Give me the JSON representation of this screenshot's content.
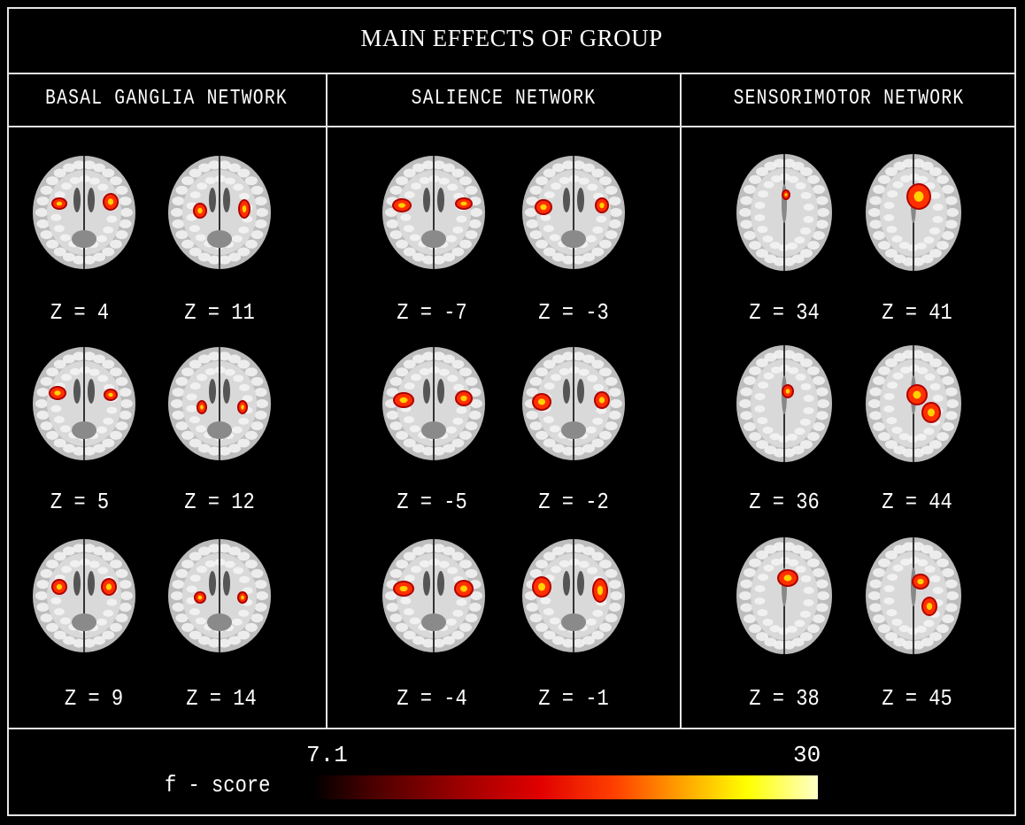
{
  "figure": {
    "title": "MAIN EFFECTS OF GROUP",
    "networks": [
      {
        "name": "BASAL GANGLIA NETWORK",
        "slices": [
          "Z = 4",
          "Z = 11",
          "Z = 5",
          "Z = 12",
          "Z = 9",
          "Z = 14"
        ]
      },
      {
        "name": "SALIENCE NETWORK",
        "slices": [
          "Z = -7",
          "Z = -3",
          "Z = -5",
          "Z = -2",
          "Z = -4",
          "Z = -1"
        ]
      },
      {
        "name": "SENSORIMOTOR NETWORK",
        "slices": [
          "Z = 34",
          "Z = 41",
          "Z = 36",
          "Z = 44",
          "Z = 38",
          "Z = 45"
        ]
      }
    ],
    "colorbar": {
      "label": "f - score",
      "min": "7.1",
      "max": "30",
      "colors": [
        "#000000",
        "#a00000",
        "#ff4000",
        "#ffff00",
        "#ffffc8"
      ]
    }
  }
}
